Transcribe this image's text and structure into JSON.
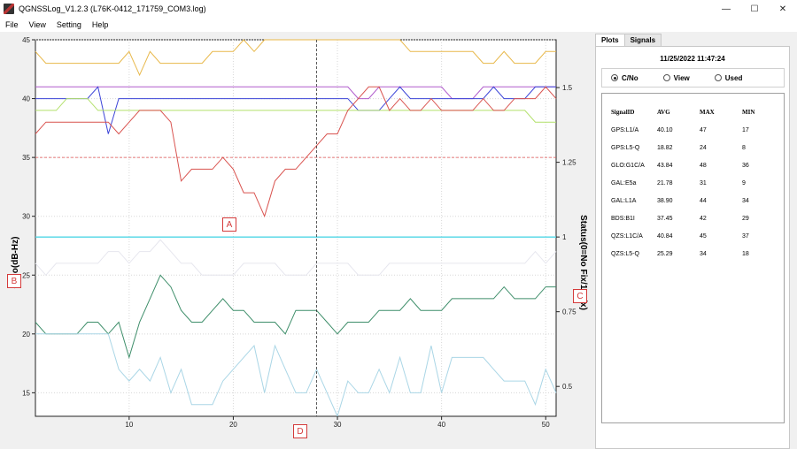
{
  "window": {
    "title": "QGNSSLog_V1.2.3 (L76K-0412_171759_COM3.log)",
    "controls": [
      "—",
      "☐",
      "✕"
    ]
  },
  "menu": [
    "File",
    "View",
    "Setting",
    "Help"
  ],
  "plot": {
    "ylabel_left": "C/No(dB-Hz)",
    "ylabel_right": "Status(0=No Fix/1=Fix)"
  },
  "chart_data": {
    "type": "line",
    "xlim": [
      1,
      51
    ],
    "ylim_left": [
      13,
      45
    ],
    "ylim_right": [
      0.4,
      1.66
    ],
    "x_ticks": [
      10,
      20,
      30,
      40,
      50
    ],
    "y_ticks_left": [
      15,
      20,
      25,
      30,
      35,
      40,
      45
    ],
    "y_ticks_right": [
      "0.5",
      "0.75",
      "1",
      "1.25",
      "1.5"
    ],
    "cursor_x": 28,
    "threshold_left": 35,
    "status_value": 1,
    "series": [
      {
        "color": "#e8b84a",
        "values": [
          44,
          43,
          43,
          43,
          43,
          43,
          43,
          43,
          43,
          44,
          42,
          44,
          43,
          43,
          43,
          43,
          43,
          44,
          44,
          44,
          45,
          44,
          45,
          45,
          45,
          45,
          45,
          45,
          45,
          45,
          45,
          45,
          45,
          45,
          45,
          45,
          44,
          44,
          44,
          44,
          44,
          44,
          44,
          43,
          43,
          44,
          43,
          43,
          43,
          44,
          44
        ]
      },
      {
        "color": "#b05ccc",
        "values": [
          41,
          41,
          41,
          41,
          41,
          41,
          41,
          41,
          41,
          41,
          41,
          41,
          41,
          41,
          41,
          41,
          41,
          41,
          41,
          41,
          41,
          41,
          41,
          41,
          41,
          41,
          41,
          41,
          41,
          41,
          41,
          40,
          40,
          41,
          41,
          41,
          41,
          41,
          41,
          41,
          40,
          40,
          40,
          41,
          41,
          41,
          41,
          41,
          41,
          41,
          41
        ]
      },
      {
        "color": "#3b44d8",
        "values": [
          40,
          40,
          40,
          40,
          40,
          40,
          41,
          37,
          40,
          40,
          40,
          40,
          40,
          40,
          40,
          40,
          40,
          40,
          40,
          40,
          40,
          40,
          40,
          40,
          40,
          40,
          40,
          40,
          40,
          40,
          40,
          39,
          39,
          39,
          40,
          41,
          40,
          40,
          40,
          40,
          40,
          40,
          40,
          40,
          41,
          40,
          40,
          40,
          41,
          41,
          41
        ]
      },
      {
        "color": "#b2e06a",
        "values": [
          39,
          39,
          39,
          40,
          40,
          40,
          39,
          39,
          39,
          39,
          39,
          39,
          39,
          39,
          39,
          39,
          39,
          39,
          39,
          39,
          39,
          39,
          39,
          39,
          39,
          39,
          39,
          39,
          39,
          39,
          39,
          39,
          39,
          39,
          39,
          39,
          39,
          39,
          39,
          39,
          39,
          39,
          39,
          39,
          39,
          39,
          39,
          39,
          38,
          38,
          38
        ]
      },
      {
        "color": "#d9534f",
        "values": [
          37,
          38,
          38,
          38,
          38,
          38,
          38,
          38,
          37,
          38,
          39,
          39,
          39,
          38,
          33,
          34,
          34,
          34,
          35,
          34,
          32,
          32,
          30,
          33,
          34,
          34,
          35,
          36,
          37,
          37,
          39,
          40,
          41,
          41,
          39,
          40,
          39,
          39,
          40,
          39,
          39,
          39,
          39,
          40,
          39,
          39,
          40,
          40,
          40,
          41,
          40
        ]
      },
      {
        "color": "#e6e6ee",
        "values": [
          26,
          25,
          26,
          26,
          26,
          26,
          26,
          27,
          27,
          26,
          27,
          27,
          28,
          27,
          26,
          26,
          25,
          25,
          25,
          25,
          26,
          26,
          26,
          26,
          25,
          25,
          25,
          26,
          26,
          26,
          26,
          25,
          25,
          25,
          26,
          26,
          26,
          26,
          26,
          26,
          26,
          26,
          26,
          26,
          26,
          26,
          26,
          26,
          27,
          26,
          27
        ]
      },
      {
        "color": "#3e8e6a",
        "values": [
          21,
          20,
          20,
          20,
          20,
          21,
          21,
          20,
          21,
          18,
          21,
          23,
          25,
          24,
          22,
          21,
          21,
          22,
          23,
          22,
          22,
          21,
          21,
          21,
          20,
          22,
          22,
          22,
          21,
          20,
          21,
          21,
          21,
          22,
          22,
          22,
          23,
          22,
          22,
          22,
          23,
          23,
          23,
          23,
          23,
          24,
          23,
          23,
          23,
          24,
          24
        ]
      },
      {
        "color": "#aad6e6",
        "values": [
          20,
          20,
          20,
          20,
          20,
          20,
          20,
          20,
          17,
          16,
          17,
          16,
          18,
          15,
          17,
          14,
          14,
          14,
          16,
          17,
          18,
          19,
          15,
          19,
          17,
          15,
          15,
          17,
          15,
          13,
          16,
          15,
          15,
          17,
          15,
          18,
          15,
          15,
          19,
          15,
          18,
          18,
          18,
          18,
          17,
          16,
          16,
          16,
          14,
          17,
          15
        ]
      }
    ]
  },
  "markers": {
    "a": "A",
    "b": "B",
    "c": "C",
    "d": "D"
  },
  "side": {
    "tabs": [
      "Plots",
      "Signals"
    ],
    "timestamp": "11/25/2022 11:47:24",
    "radios": [
      "C/No",
      "View",
      "Used"
    ],
    "selected_radio": "C/No",
    "columns": [
      "SignalID",
      "AVG",
      "MAX",
      "MIN"
    ],
    "rows": [
      [
        "GPS:L1/A",
        "40.10",
        "47",
        "17"
      ],
      [
        "GPS:L5-Q",
        "18.82",
        "24",
        "8"
      ],
      [
        "GLO:G1C/A",
        "43.84",
        "48",
        "36"
      ],
      [
        "GAL:E5a",
        "21.78",
        "31",
        "9"
      ],
      [
        "GAL:L1A",
        "38.90",
        "44",
        "34"
      ],
      [
        "BDS:B1I",
        "37.45",
        "42",
        "29"
      ],
      [
        "QZS:L1C/A",
        "40.84",
        "45",
        "37"
      ],
      [
        "QZS:L5-Q",
        "25.29",
        "34",
        "18"
      ]
    ]
  }
}
